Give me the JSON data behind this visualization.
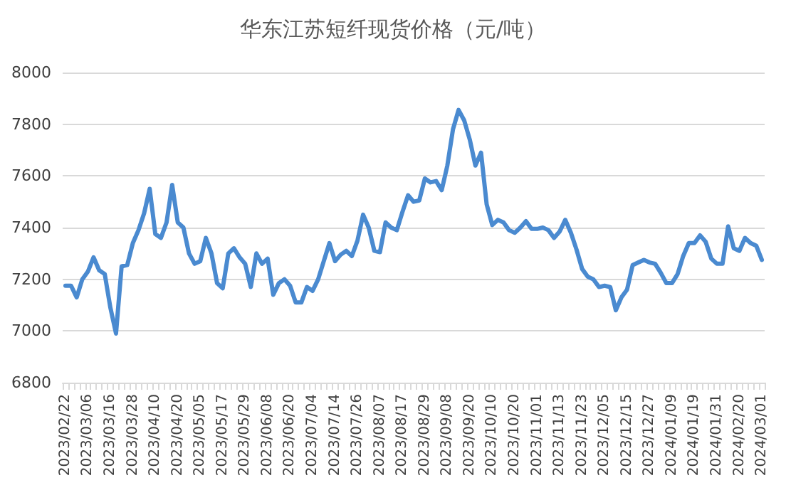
{
  "chart_data": {
    "type": "line",
    "title": "华东江苏短纤现货价格（元/吨）",
    "categories": [
      "2023/02/22",
      null,
      null,
      null,
      "2023/03/06",
      null,
      null,
      null,
      "2023/03/16",
      null,
      null,
      null,
      "2023/03/28",
      null,
      null,
      null,
      "2023/04/10",
      null,
      null,
      null,
      "2023/04/20",
      null,
      null,
      null,
      "2023/05/05",
      null,
      null,
      null,
      "2023/05/17",
      null,
      null,
      null,
      "2023/05/29",
      null,
      null,
      null,
      "2023/06/08",
      null,
      null,
      null,
      "2023/06/20",
      null,
      null,
      null,
      "2023/07/04",
      null,
      null,
      null,
      "2023/07/14",
      null,
      null,
      null,
      "2023/07/26",
      null,
      null,
      null,
      "2023/08/07",
      null,
      null,
      null,
      "2023/08/17",
      null,
      null,
      null,
      "2023/08/29",
      null,
      null,
      null,
      "2023/09/08",
      null,
      null,
      null,
      "2023/09/20",
      null,
      null,
      null,
      "2023/10/10",
      null,
      null,
      null,
      "2023/10/20",
      null,
      null,
      null,
      "2023/11/01",
      null,
      null,
      null,
      "2023/11/13",
      null,
      null,
      null,
      "2023/11/23",
      null,
      null,
      null,
      "2023/12/05",
      null,
      null,
      null,
      "2023/12/15",
      null,
      null,
      null,
      "2023/12/27",
      null,
      null,
      null,
      "2024/01/09",
      null,
      null,
      null,
      "2024/01/19",
      null,
      null,
      null,
      "2024/01/31",
      null,
      null,
      null,
      "2024/02/20",
      null,
      null,
      null,
      "2024/03/01"
    ],
    "series": [
      {
        "color": "#4a8ad0",
        "values": [
          7175,
          7175,
          7130,
          7200,
          7230,
          7285,
          7235,
          7220,
          7090,
          6990,
          7250,
          7255,
          7340,
          7390,
          7455,
          7550,
          7375,
          7360,
          7420,
          7565,
          7420,
          7400,
          7300,
          7260,
          7270,
          7360,
          7300,
          7185,
          7165,
          7300,
          7320,
          7285,
          7260,
          7170,
          7300,
          7260,
          7280,
          7140,
          7185,
          7200,
          7175,
          7110,
          7110,
          7170,
          7155,
          7200,
          7270,
          7340,
          7270,
          7295,
          7310,
          7290,
          7350,
          7450,
          7400,
          7310,
          7305,
          7420,
          7400,
          7390,
          7460,
          7525,
          7500,
          7505,
          7590,
          7575,
          7580,
          7545,
          7640,
          7780,
          7855,
          7815,
          7740,
          7640,
          7690,
          7490,
          7410,
          7430,
          7420,
          7390,
          7380,
          7400,
          7425,
          7395,
          7395,
          7400,
          7390,
          7360,
          7385,
          7430,
          7380,
          7315,
          7240,
          7210,
          7200,
          7170,
          7175,
          7170,
          7080,
          7130,
          7160,
          7255,
          7265,
          7275,
          7265,
          7260,
          7225,
          7185,
          7185,
          7220,
          7290,
          7340,
          7340,
          7370,
          7345,
          7280,
          7260,
          7260,
          7405,
          7320,
          7310,
          7360,
          7340,
          7330,
          7275
        ]
      }
    ],
    "ylim": [
      6800,
      8000
    ],
    "yticks": [
      6800,
      7000,
      7200,
      7400,
      7600,
      7800,
      8000
    ],
    "grid": "y",
    "marker": "none",
    "line_style": "solid"
  }
}
